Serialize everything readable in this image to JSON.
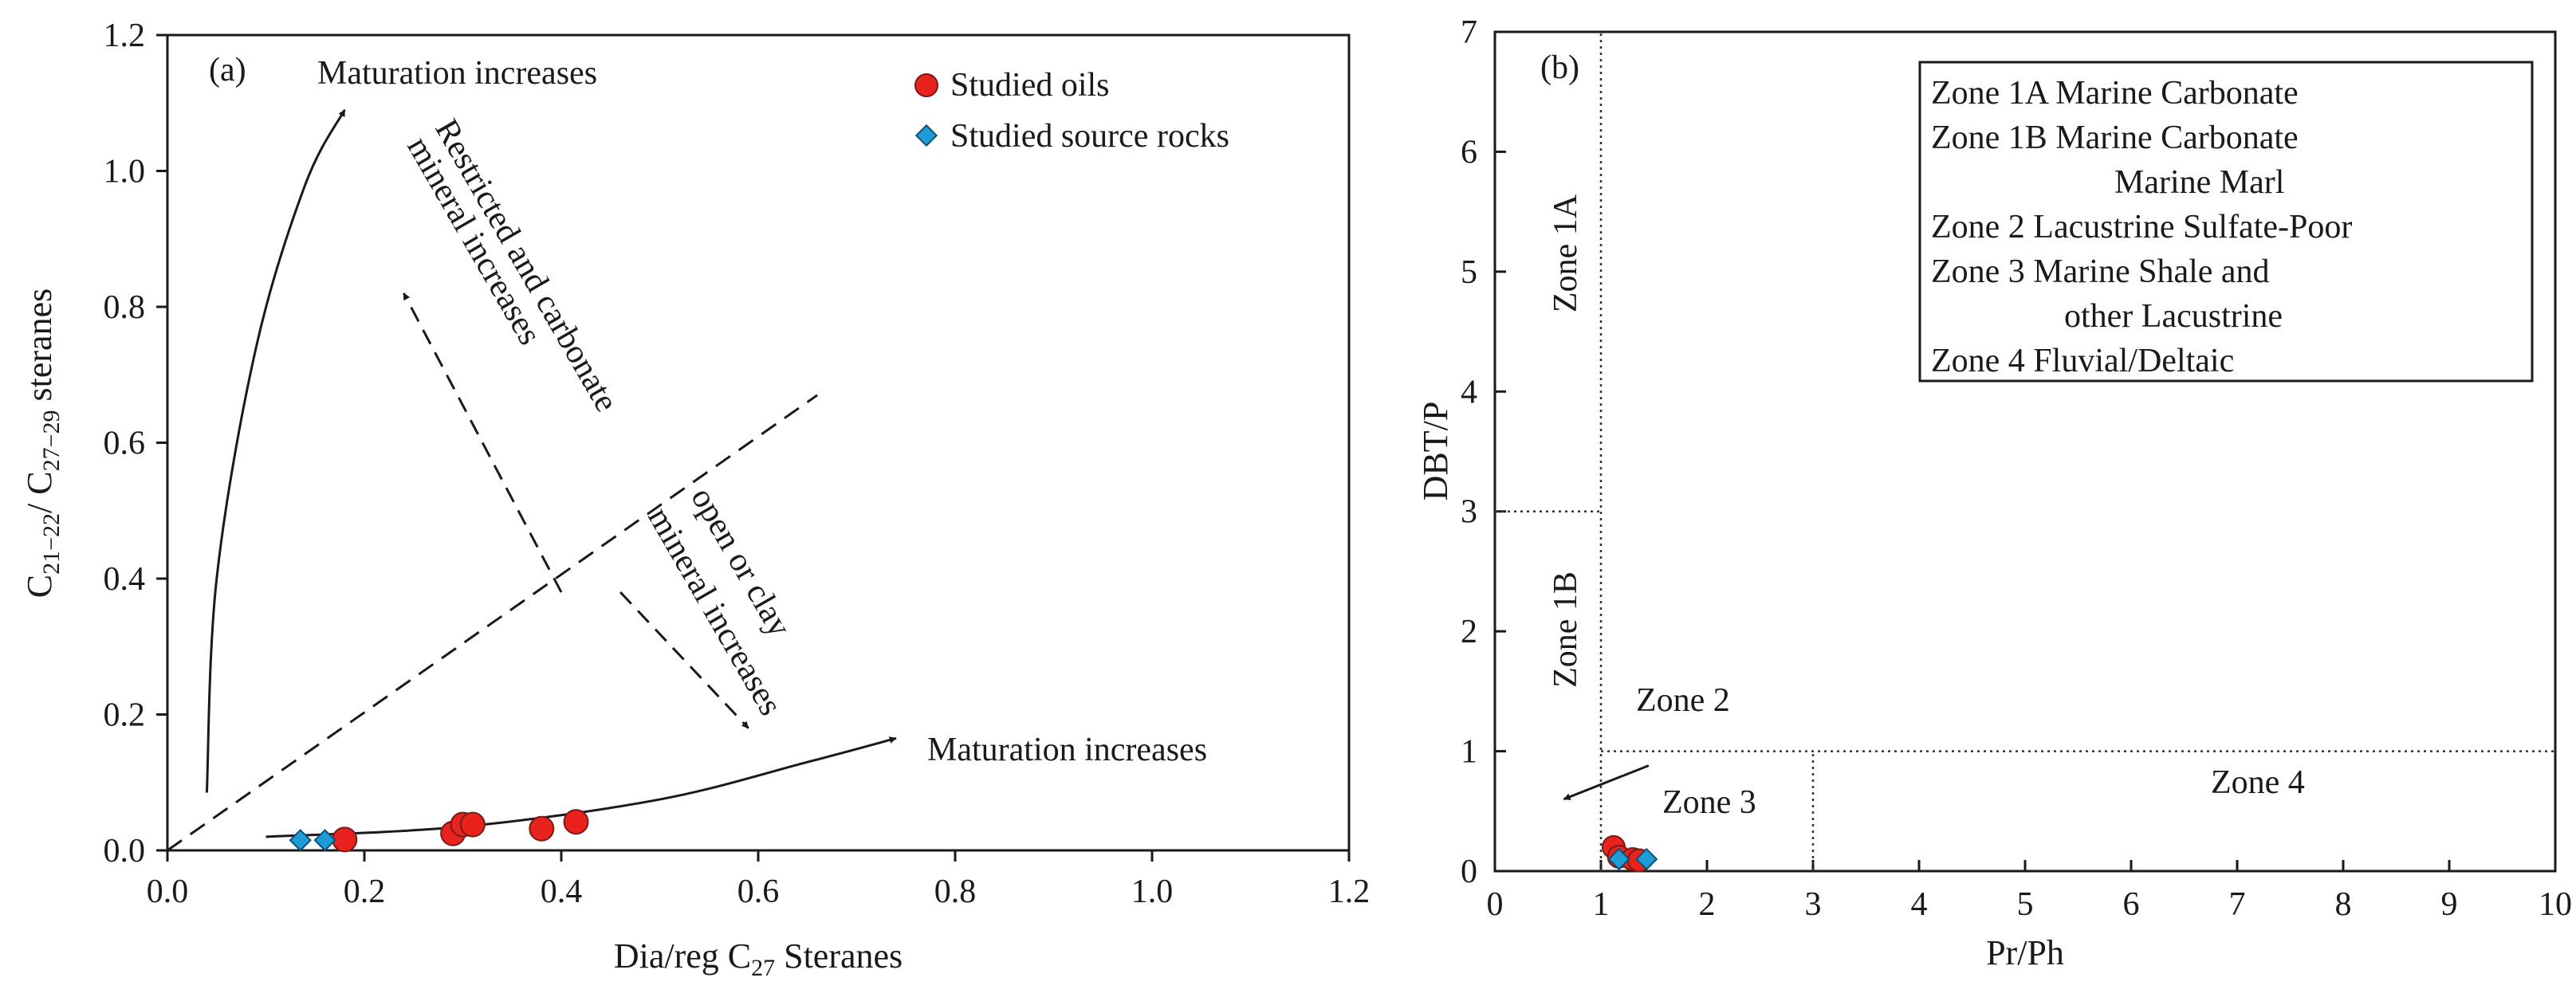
{
  "chart_data": [
    {
      "panel": "(a)",
      "type": "scatter",
      "xlabel": {
        "main": "Dia/reg C",
        "sub": "27",
        "rest": " Steranes"
      },
      "ylabel": {
        "c": "C",
        "sub1": "21−22",
        "slash": "/ C",
        "sub2": "27−29",
        "rest": "  steranes"
      },
      "xlim": [
        0.0,
        1.2
      ],
      "ylim": [
        0.0,
        1.2
      ],
      "xticks": [
        "0.0",
        "0.2",
        "0.4",
        "0.6",
        "0.8",
        "1.0",
        "1.2"
      ],
      "yticks": [
        "0.0",
        "0.2",
        "0.4",
        "0.6",
        "0.8",
        "1.0",
        "1.2"
      ],
      "legend": {
        "position": "top-right",
        "entries": [
          {
            "label": "Studied oils",
            "marker": "circle",
            "color": "#e8231e"
          },
          {
            "label": "Studied source rocks",
            "marker": "diamond",
            "color": "#1f9bd7"
          }
        ]
      },
      "series": [
        {
          "name": "Studied oils",
          "points": [
            [
              0.18,
              0.016
            ],
            [
              0.29,
              0.025
            ],
            [
              0.3,
              0.038
            ],
            [
              0.31,
              0.038
            ],
            [
              0.38,
              0.032
            ],
            [
              0.415,
              0.042
            ]
          ]
        },
        {
          "name": "Studied source rocks",
          "points": [
            [
              0.135,
              0.015
            ],
            [
              0.16,
              0.015
            ]
          ]
        }
      ],
      "curves": {
        "maturation_vertical": [
          [
            0.04,
            0.085
          ],
          [
            0.05,
            0.4
          ],
          [
            0.09,
            0.74
          ],
          [
            0.14,
            0.98
          ],
          [
            0.18,
            1.09
          ]
        ],
        "maturation_horizontal": [
          [
            0.1,
            0.02
          ],
          [
            0.3,
            0.035
          ],
          [
            0.5,
            0.075
          ],
          [
            0.65,
            0.13
          ],
          [
            0.74,
            0.165
          ]
        ],
        "divider": [
          [
            0.0,
            0.0
          ],
          [
            0.66,
            0.67
          ]
        ],
        "arrow_up": [
          [
            0.4,
            0.38
          ],
          [
            0.24,
            0.82
          ]
        ],
        "arrow_down": [
          [
            0.46,
            0.38
          ],
          [
            0.59,
            0.18
          ]
        ]
      },
      "annotations": {
        "maturation_top": "Maturation increases",
        "maturation_right": "Maturation increases",
        "restricted_line1": "Restricted and carbonate",
        "restricted_line2": "mineral increases",
        "open_line1": "open or clay",
        "open_line2": "mineral increases"
      }
    },
    {
      "panel": "(b)",
      "type": "scatter",
      "xlabel": "Pr/Ph",
      "ylabel": "DBT/P",
      "xlim": [
        0,
        10
      ],
      "ylim": [
        0,
        7
      ],
      "xticks": [
        "0",
        "1",
        "2",
        "3",
        "4",
        "5",
        "6",
        "7",
        "8",
        "9",
        "10"
      ],
      "yticks": [
        "0",
        "1",
        "2",
        "3",
        "4",
        "5",
        "6",
        "7"
      ],
      "legend": {
        "position": "top-right",
        "entries": [
          {
            "label": "Zone 1A Marine Carbonate"
          },
          {
            "label": "Zone 1B Marine Carbonate"
          },
          {
            "label": "Marine Marl",
            "indent": true
          },
          {
            "label": "Zone 2 Lacustrine Sulfate-Poor"
          },
          {
            "label": "Zone 3 Marine Shale and"
          },
          {
            "label": "other Lacustrine",
            "indent": true
          },
          {
            "label": "Zone 4 Fluvial/Deltaic"
          }
        ]
      },
      "series": [
        {
          "name": "Studied oils",
          "color": "#e8231e",
          "points": [
            [
              1.12,
              0.2
            ],
            [
              1.17,
              0.12
            ],
            [
              1.3,
              0.1
            ],
            [
              1.36,
              0.09
            ]
          ]
        },
        {
          "name": "Studied source rocks",
          "color": "#1f9bd7",
          "points": [
            [
              1.17,
              0.1
            ],
            [
              1.43,
              0.1
            ]
          ]
        }
      ],
      "zone_lines": {
        "x_equals_1": [
          [
            1,
            0
          ],
          [
            1,
            7
          ]
        ],
        "y_equals_3_left": [
          [
            0,
            3
          ],
          [
            1,
            3
          ]
        ],
        "y_equals_1": [
          [
            1,
            1
          ],
          [
            10,
            1
          ]
        ],
        "x_equals_3": [
          [
            3,
            0
          ],
          [
            3,
            1
          ]
        ]
      },
      "zone_arrow": [
        [
          1.45,
          0.88
        ],
        [
          0.65,
          0.6
        ]
      ],
      "zones": {
        "zone_1a": "Zone 1A",
        "zone_1b": "Zone 1B",
        "zone_2": "Zone 2",
        "zone_3": "Zone 3",
        "zone_4": "Zone 4"
      }
    }
  ]
}
